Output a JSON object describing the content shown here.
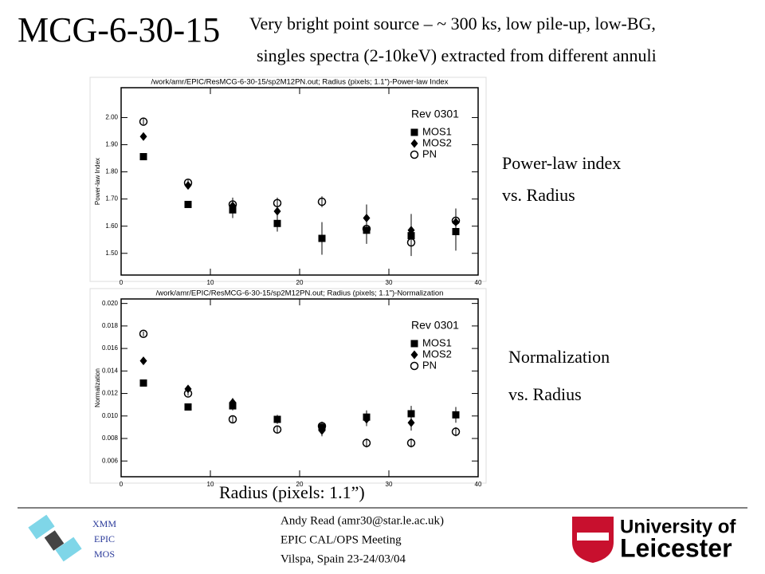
{
  "slide": {
    "title": "MCG-6-30-15",
    "subtitle_lines": [
      "Very bright point source – ~ 300 ks, low pile-up, low-BG,",
      "singles spectra (2-10keV) extracted from different annuli"
    ],
    "side_labels": [
      [
        "Power-law index",
        "vs. Radius"
      ],
      [
        "Normalization",
        "vs. Radius"
      ]
    ],
    "x_caption": "Radius (pixels: 1.1”)",
    "footer_left": [
      "XMM",
      "EPIC",
      "MOS"
    ],
    "footer_center": [
      "Andy Read (amr30@star.le.ac.uk)",
      "EPIC CAL/OPS Meeting",
      "Vilspa, Spain 23-24/03/04"
    ],
    "logo": [
      "University of",
      "Leicester"
    ]
  },
  "chart_data": [
    {
      "type": "scatter",
      "title": "/work/amr/EPIC/ResMCG-6-30-15/sp2M12PN.out; Radius (pixels; 1.1\")-Power-law Index",
      "y_label": "Power-law Index",
      "legend_title": "Rev 0301",
      "legend": "upper right",
      "x": [
        2.5,
        7.5,
        12.5,
        17.5,
        22.5,
        27.5,
        32.5,
        37.5
      ],
      "xlim": [
        0,
        40
      ],
      "xticks": [
        0,
        10,
        20,
        30,
        40
      ],
      "ylim": [
        1.42,
        2.11
      ],
      "yticks": [
        {
          "value": 1.5,
          "label": "1.50"
        },
        {
          "value": 1.6,
          "label": "1.60"
        },
        {
          "value": 1.7,
          "label": "1.70"
        },
        {
          "value": 1.8,
          "label": "1.80"
        },
        {
          "value": 1.9,
          "label": "1.90"
        },
        {
          "value": 2.0,
          "label": "2.00"
        }
      ],
      "series": [
        {
          "name": "MOS1",
          "color": "#000000",
          "marker": "square",
          "values": [
            1.856,
            1.68,
            1.66,
            1.61,
            1.555,
            1.585,
            1.565,
            1.58
          ],
          "errors": [
            0.01,
            0.01,
            0.03,
            0.03,
            0.06,
            0.05,
            0.06,
            0.07
          ]
        },
        {
          "name": "MOS2",
          "color": "#000000",
          "marker": "diamond",
          "values": [
            1.93,
            1.75,
            1.675,
            1.655,
            null,
            1.63,
            1.585,
            1.615
          ],
          "errors": [
            0.01,
            0.01,
            0.03,
            0.03,
            null,
            0.05,
            0.06,
            0.05
          ]
        },
        {
          "name": "PN",
          "color": "#000000",
          "marker": "circle",
          "values": [
            1.985,
            1.76,
            1.68,
            1.685,
            1.69,
            1.59,
            1.54,
            1.62
          ],
          "errors": [
            0.01,
            0.01,
            0.02,
            0.02,
            0.02,
            0.04,
            0.05,
            0.04
          ]
        }
      ]
    },
    {
      "type": "scatter",
      "title": "/work/amr/EPIC/ResMCG-6-30-15/sp2M12PN.out; Radius (pixels; 1.1\")-Normalization",
      "y_label": "Normalization",
      "legend_title": "Rev 0301",
      "legend": "upper right",
      "x": [
        2.5,
        7.5,
        12.5,
        17.5,
        22.5,
        27.5,
        32.5,
        37.5
      ],
      "xlim": [
        0,
        40
      ],
      "xticks": [
        0,
        10,
        20,
        30,
        40
      ],
      "ylim": [
        0.0046,
        0.0204
      ],
      "yticks": [
        {
          "value": 0.006,
          "label": "0.006"
        },
        {
          "value": 0.008,
          "label": "0.008"
        },
        {
          "value": 0.01,
          "label": "0.010"
        },
        {
          "value": 0.012,
          "label": "0.012"
        },
        {
          "value": 0.014,
          "label": "0.014"
        },
        {
          "value": 0.016,
          "label": "0.016"
        },
        {
          "value": 0.018,
          "label": "0.018"
        },
        {
          "value": 0.02,
          "label": "0.020"
        }
      ],
      "series": [
        {
          "name": "MOS1",
          "color": "#000000",
          "marker": "square",
          "values": [
            0.01293,
            0.0108,
            0.0109,
            0.0097,
            0.009,
            0.0099,
            0.0102,
            0.0101
          ],
          "errors": [
            0.0002,
            0.0002,
            0.0004,
            0.0004,
            0.0005,
            0.0006,
            0.0007,
            0.0007
          ]
        },
        {
          "name": "MOS2",
          "color": "#000000",
          "marker": "diamond",
          "values": [
            0.0149,
            0.0124,
            0.0112,
            null,
            0.0087,
            0.0097,
            0.0094,
            null
          ],
          "errors": [
            0.0002,
            0.0002,
            0.0004,
            null,
            0.0005,
            0.0006,
            0.0007,
            null
          ]
        },
        {
          "name": "PN",
          "color": "#000000",
          "marker": "circle",
          "values": [
            0.0173,
            0.012,
            0.0097,
            0.0088,
            0.0091,
            0.0076,
            0.0076,
            0.0086
          ],
          "errors": [
            0.0002,
            0.0002,
            0.0003,
            0.0003,
            0.0003,
            0.0004,
            0.0004,
            0.0004
          ]
        }
      ]
    }
  ]
}
